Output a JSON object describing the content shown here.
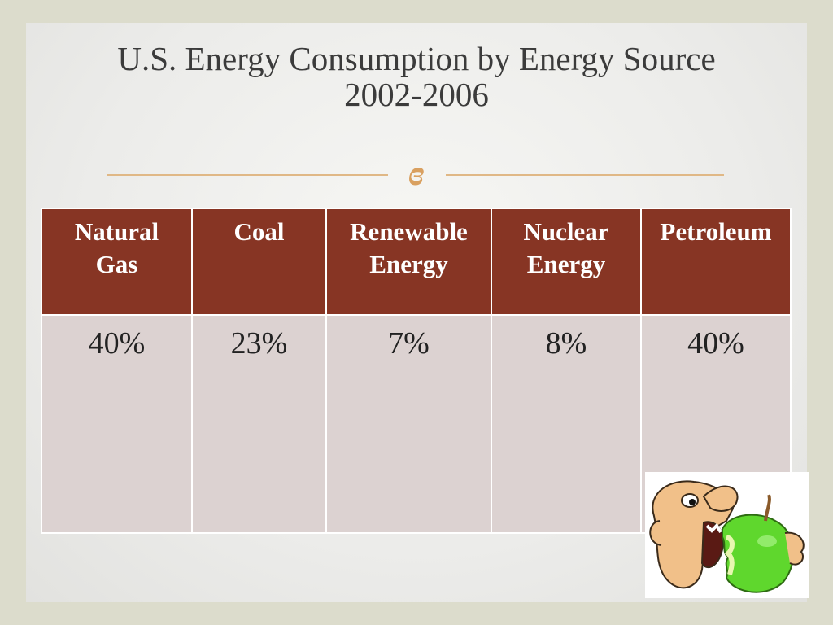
{
  "title": {
    "line1": "U.S. Energy Consumption by Energy Source",
    "line2": "2002-2006"
  },
  "divider": {
    "ornament": "ɞ"
  },
  "table": {
    "headers": [
      {
        "line1": "Natural",
        "line2": "Gas"
      },
      {
        "line1": "Coal",
        "line2": ""
      },
      {
        "line1": "Renewable",
        "line2": "Energy"
      },
      {
        "line1": "Nuclear",
        "line2": "Energy"
      },
      {
        "line1": "Petroleum",
        "line2": ""
      }
    ],
    "values": [
      "40%",
      "23%",
      "7%",
      "8%",
      "40%"
    ]
  },
  "image": {
    "icon": "cartoon-head-biting-green-apple"
  },
  "colors": {
    "header_bg": "#873524",
    "cell_bg": "#dcd2d1",
    "accent_rule": "#e0b886"
  }
}
